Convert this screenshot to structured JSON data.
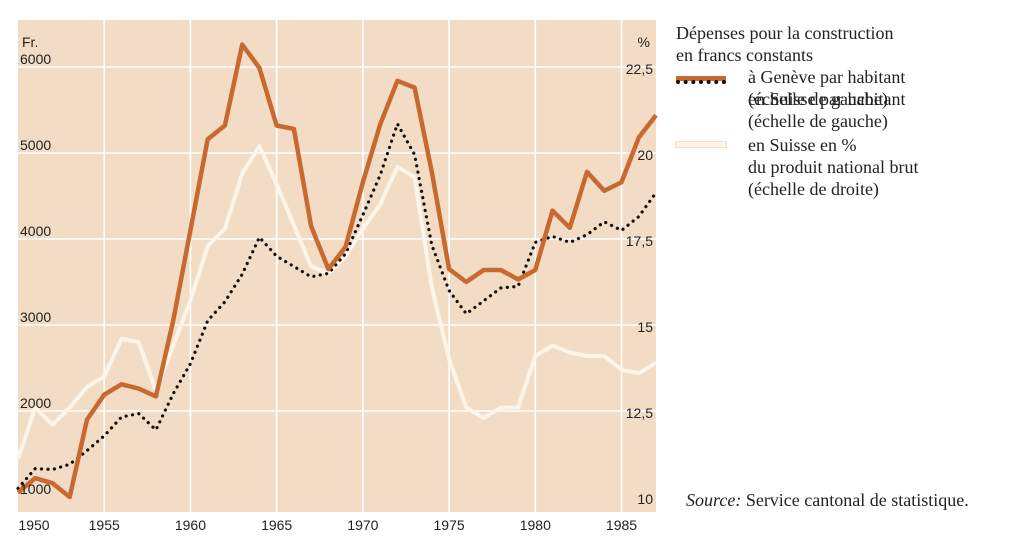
{
  "colors": {
    "plot_background": "#f3dcc5",
    "grid": "#ffffff",
    "geneve": "#c8692f",
    "suisse_hab": "#111111",
    "suisse_pct": "#fdf5ea"
  },
  "legend": {
    "title_line1": "Dépenses pour la construction",
    "title_line2": "en francs constants",
    "items": [
      {
        "line1": "à Genève par habitant",
        "line2": "(échelle de gauche)",
        "line3": ""
      },
      {
        "line1": "en Suisse par habitant",
        "line2": "(échelle de gauche)",
        "line3": ""
      },
      {
        "line1": "en Suisse en %",
        "line2": "du produit national brut",
        "line3": "(échelle de droite)"
      }
    ]
  },
  "source": {
    "label": "Source:",
    "text": " Service cantonal de statistique."
  },
  "chart_data": {
    "type": "line",
    "grid": true,
    "legend_position": "right",
    "left_axis": {
      "unit_label": "Fr.",
      "range": [
        1000,
        6400
      ],
      "ticks": [
        1000,
        2000,
        3000,
        4000,
        5000,
        6000
      ],
      "tick_labels": [
        "1000",
        "2000",
        "3000",
        "4000",
        "5000",
        "6000"
      ]
    },
    "right_axis": {
      "unit_label": "%",
      "range": [
        10,
        23.2
      ],
      "ticks": [
        10,
        12.5,
        15,
        17.5,
        20,
        22.5
      ],
      "tick_labels": [
        "10",
        "12,5",
        "15",
        "17,5",
        "20",
        "22,5"
      ]
    },
    "x_axis": {
      "range": [
        1950,
        1987
      ],
      "ticks": [
        1950,
        1955,
        1960,
        1965,
        1970,
        1975,
        1980,
        1985
      ],
      "tick_labels": [
        "1950",
        "1955",
        "1960",
        "1965",
        "1970",
        "1975",
        "1980",
        "1985"
      ]
    },
    "x": [
      1950,
      1951,
      1952,
      1953,
      1954,
      1955,
      1956,
      1957,
      1958,
      1959,
      1960,
      1961,
      1962,
      1963,
      1964,
      1965,
      1966,
      1967,
      1968,
      1969,
      1970,
      1971,
      1972,
      1973,
      1974,
      1975,
      1976,
      1977,
      1978,
      1979,
      1980,
      1981,
      1982,
      1983,
      1984,
      1985,
      1986,
      1987
    ],
    "series": [
      {
        "key": "geneve",
        "axis": "left",
        "style": "solid-thick",
        "values": [
          1050,
          1220,
          1160,
          1000,
          1900,
          2190,
          2310,
          2260,
          2170,
          3050,
          4100,
          5160,
          5320,
          6260,
          5990,
          5320,
          5280,
          4150,
          3650,
          3910,
          4660,
          5330,
          5840,
          5760,
          4780,
          3650,
          3500,
          3640,
          3640,
          3530,
          3640,
          4330,
          4130,
          4780,
          4560,
          4660,
          5180,
          5440
        ]
      },
      {
        "key": "suisse_hab",
        "axis": "left",
        "style": "dotted",
        "values": [
          1100,
          1330,
          1320,
          1380,
          1540,
          1710,
          1930,
          1970,
          1780,
          2200,
          2550,
          3050,
          3270,
          3590,
          4020,
          3800,
          3680,
          3560,
          3600,
          3830,
          4280,
          4740,
          5340,
          4980,
          3930,
          3400,
          3130,
          3280,
          3430,
          3450,
          3960,
          4030,
          3960,
          4050,
          4200,
          4100,
          4260,
          4540
        ]
      },
      {
        "key": "suisse_pct",
        "axis": "right",
        "style": "solid-white",
        "values": [
          11.1,
          12.6,
          12.1,
          12.6,
          13.2,
          13.5,
          14.6,
          14.5,
          13.1,
          14.4,
          15.7,
          17.3,
          17.8,
          19.4,
          20.2,
          19.1,
          17.9,
          16.7,
          16.5,
          17.0,
          17.8,
          18.5,
          19.6,
          19.3,
          16.1,
          14.0,
          12.6,
          12.3,
          12.6,
          12.6,
          14.1,
          14.4,
          14.2,
          14.1,
          14.1,
          13.7,
          13.6,
          13.9
        ]
      }
    ]
  }
}
